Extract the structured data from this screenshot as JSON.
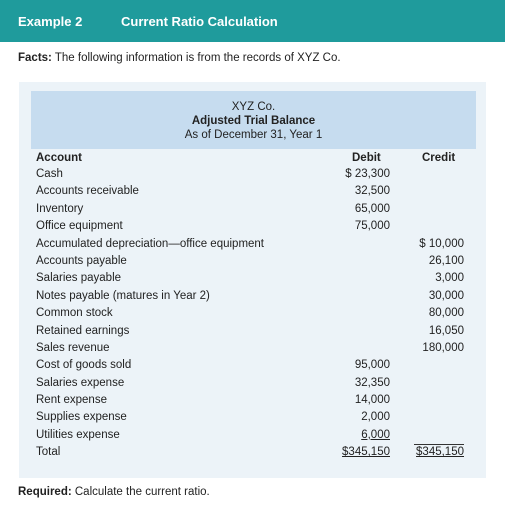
{
  "header": {
    "example_label": "Example 2",
    "title": "Current Ratio Calculation"
  },
  "facts": {
    "label": "Facts:",
    "text": "The following information is from the records of XYZ Co."
  },
  "trial_balance": {
    "company": "XYZ Co.",
    "title": "Adjusted Trial Balance",
    "date": "As of December 31, Year 1",
    "col_account": "Account",
    "col_debit": "Debit",
    "col_credit": "Credit",
    "rows": [
      {
        "account": "Cash",
        "debit": "$ 23,300",
        "credit": ""
      },
      {
        "account": "Accounts receivable",
        "debit": "32,500",
        "credit": ""
      },
      {
        "account": "Inventory",
        "debit": "65,000",
        "credit": ""
      },
      {
        "account": "Office equipment",
        "debit": "75,000",
        "credit": ""
      },
      {
        "account": "Accumulated depreciation—office equipment",
        "debit": "",
        "credit": "$ 10,000"
      },
      {
        "account": "Accounts payable",
        "debit": "",
        "credit": "26,100"
      },
      {
        "account": "Salaries payable",
        "debit": "",
        "credit": "3,000"
      },
      {
        "account": "Notes payable (matures in Year 2)",
        "debit": "",
        "credit": "30,000"
      },
      {
        "account": "Common stock",
        "debit": "",
        "credit": "80,000"
      },
      {
        "account": "Retained earnings",
        "debit": "",
        "credit": "16,050"
      },
      {
        "account": "Sales revenue",
        "debit": "",
        "credit": "180,000"
      },
      {
        "account": "Cost of goods sold",
        "debit": "95,000",
        "credit": ""
      },
      {
        "account": "Salaries expense",
        "debit": "32,350",
        "credit": ""
      },
      {
        "account": "Rent expense",
        "debit": "14,000",
        "credit": ""
      },
      {
        "account": "Supplies expense",
        "debit": "2,000",
        "credit": ""
      },
      {
        "account": "Utilities expense",
        "debit": "6,000",
        "credit": ""
      }
    ],
    "total": {
      "account": "Total",
      "debit": "$345,150",
      "credit": "$345,150"
    }
  },
  "required": {
    "label": "Required:",
    "text": "Calculate the current ratio."
  }
}
